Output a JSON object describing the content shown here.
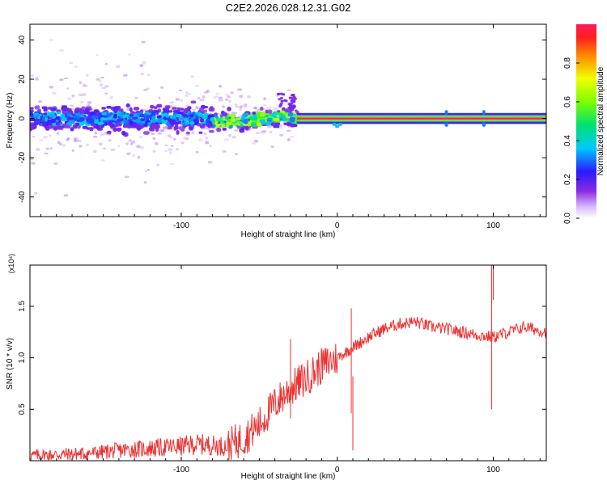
{
  "figure": {
    "title": "C2E2.2026.028.12.31.G02"
  },
  "chart_data": [
    {
      "type": "heatmap",
      "title": "C2E2.2026.028.12.31.G02",
      "xlabel": "Height of straight line (km)",
      "ylabel": "Frequency (Hz)",
      "xlim": [
        -197,
        134
      ],
      "ylim": [
        -50,
        48
      ],
      "xticks": [
        -100,
        0,
        100
      ],
      "yticks": [
        -40,
        -20,
        0,
        20,
        40
      ],
      "colorbar": {
        "label": "Normalized spectral amplitude",
        "range": [
          0.0,
          1.0
        ],
        "ticks": [
          0.0,
          0.2,
          0.4,
          0.6,
          0.8
        ],
        "tick_labels": [
          "0.0",
          "0.2",
          "0.4",
          "0.6",
          "0.8"
        ]
      },
      "description_points": [
        {
          "x": -25,
          "y": 0,
          "value": 1.0
        },
        {
          "x": 134,
          "y": 0,
          "value": 1.0
        },
        {
          "x": -75,
          "y": -5,
          "value": 0.5
        },
        {
          "x": -150,
          "y": 0,
          "value": 0.3
        }
      ]
    },
    {
      "type": "line",
      "xlabel": "Height of straight line (km)",
      "ylabel": "SNR (10 * v/v)",
      "y_multiplier": "(x10⁴)",
      "xlim": [
        -197,
        134
      ],
      "ylim": [
        0,
        1.9
      ],
      "xticks": [
        -100,
        0,
        100
      ],
      "yticks": [
        0.5,
        1.0,
        1.5
      ],
      "ytick_labels": [
        "0.5",
        "1.0",
        "1.5"
      ],
      "series": [
        {
          "name": "SNR",
          "color": "#ee3030",
          "x": [
            -197,
            -180,
            -160,
            -140,
            -120,
            -100,
            -90,
            -80,
            -70,
            -60,
            -50,
            -40,
            -30,
            -20,
            -10,
            0,
            10,
            20,
            30,
            40,
            50,
            60,
            70,
            80,
            90,
            100,
            110,
            120,
            134
          ],
          "y": [
            0.05,
            0.06,
            0.07,
            0.1,
            0.12,
            0.14,
            0.16,
            0.15,
            0.14,
            0.22,
            0.35,
            0.55,
            0.7,
            0.8,
            0.92,
            1.0,
            1.1,
            1.2,
            1.28,
            1.33,
            1.35,
            1.3,
            1.28,
            1.25,
            1.22,
            1.2,
            1.25,
            1.3,
            1.25
          ]
        }
      ]
    }
  ]
}
